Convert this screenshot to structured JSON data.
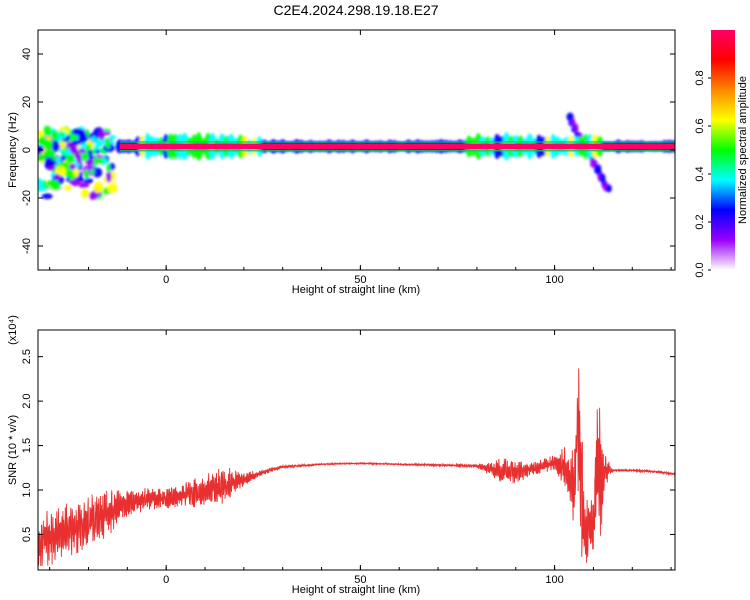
{
  "title": "C2E4.2024.298.19.18.E27",
  "chart_data": [
    {
      "type": "heatmap",
      "xlabel": "Height of straight line (km)",
      "ylabel": "Frequency (Hz)",
      "xlim": [
        -33,
        131
      ],
      "ylim": [
        -50,
        50
      ],
      "xticks": [
        0,
        50,
        100
      ],
      "xtick_labels": [
        "0",
        "50",
        "100"
      ],
      "yticks": [
        -40,
        -20,
        0,
        20,
        40
      ],
      "ytick_labels": [
        "-40",
        "-20",
        "0",
        "20",
        "40"
      ],
      "colorbar": {
        "label": "Normalized spectral amplitude",
        "ticks": [
          0.0,
          0.2,
          0.4,
          0.6,
          0.8
        ],
        "tick_labels": [
          "0.0",
          "0.2",
          "0.4",
          "0.6",
          "0.8"
        ],
        "colors": [
          "#ffffff",
          "#9900ff",
          "#0000ff",
          "#00ffff",
          "#00ff00",
          "#ffff00",
          "#ff8800",
          "#ff0000",
          "#ff0066"
        ]
      },
      "features": [
        {
          "kind": "band",
          "x": [
            -12,
            131
          ],
          "freq_center": 1.5,
          "freq_halfwidth": 1.2,
          "amplitude": 1.0
        },
        {
          "kind": "scatter",
          "x": [
            -33,
            -13
          ],
          "freq": [
            -20,
            8
          ],
          "amplitude": 0.5
        },
        {
          "kind": "streak",
          "x": [
            104,
            114
          ],
          "freq": [
            13,
            -17
          ],
          "amplitude": 0.25
        }
      ]
    },
    {
      "type": "line",
      "xlabel": "Height of straight line (km)",
      "ylabel": "SNR (10 * v/v)",
      "yscale_label": "(x10⁴)",
      "xlim": [
        -33,
        131
      ],
      "ylim": [
        0.1,
        2.8
      ],
      "xticks": [
        0,
        50,
        100
      ],
      "xtick_labels": [
        "0",
        "50",
        "100"
      ],
      "yticks": [
        0.5,
        1.0,
        1.5,
        2.0,
        2.5
      ],
      "ytick_labels": [
        "0.5",
        "1.0",
        "1.5",
        "2.0",
        "2.5"
      ],
      "color": "#e83030",
      "envelope": {
        "x": [
          -33,
          -25,
          -20,
          -15,
          -10,
          -5,
          0,
          5,
          10,
          15,
          20,
          25,
          30,
          40,
          50,
          60,
          70,
          80,
          85,
          90,
          95,
          100,
          103,
          105,
          106,
          107,
          108,
          109,
          110,
          111,
          112,
          113,
          115,
          120,
          125,
          131
        ],
        "y": [
          0.4,
          0.55,
          0.65,
          0.75,
          0.85,
          0.9,
          0.9,
          0.95,
          1.0,
          1.05,
          1.12,
          1.2,
          1.26,
          1.29,
          1.3,
          1.29,
          1.28,
          1.27,
          1.22,
          1.2,
          1.25,
          1.3,
          1.25,
          1.0,
          1.8,
          0.9,
          0.5,
          0.55,
          0.6,
          1.4,
          1.1,
          1.22,
          1.22,
          1.22,
          1.21,
          1.18
        ]
      },
      "oscillation": {
        "x": [
          -33,
          -15,
          -10,
          0,
          5,
          10,
          15,
          20,
          25,
          30,
          40,
          50,
          60,
          70,
          80,
          83,
          86,
          90,
          95,
          100,
          104,
          106,
          107,
          108,
          110,
          112,
          113,
          115,
          131
        ],
        "amp": [
          0.35,
          0.28,
          0.15,
          0.12,
          0.14,
          0.2,
          0.22,
          0.08,
          0.04,
          0.02,
          0.01,
          0.01,
          0.01,
          0.015,
          0.02,
          0.08,
          0.16,
          0.14,
          0.08,
          0.1,
          0.3,
          0.9,
          0.85,
          0.4,
          0.4,
          0.8,
          0.2,
          0.015,
          0.015
        ]
      }
    }
  ]
}
